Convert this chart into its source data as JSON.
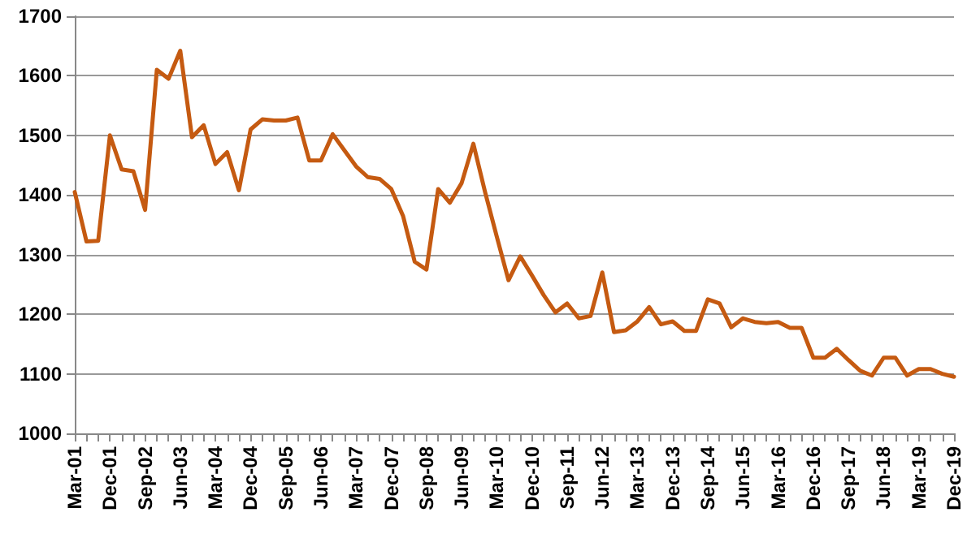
{
  "chart_data": {
    "type": "line",
    "categories": [
      "Mar-01",
      null,
      null,
      "Dec-01",
      null,
      null,
      "Sep-02",
      null,
      null,
      "Jun-03",
      null,
      null,
      "Mar-04",
      null,
      null,
      "Dec-04",
      null,
      null,
      "Sep-05",
      null,
      null,
      "Jun-06",
      null,
      null,
      "Mar-07",
      null,
      null,
      "Dec-07",
      null,
      null,
      "Sep-08",
      null,
      null,
      "Jun-09",
      null,
      null,
      "Mar-10",
      null,
      null,
      "Dec-10",
      null,
      null,
      "Sep-11",
      null,
      null,
      "Jun-12",
      null,
      null,
      "Mar-13",
      null,
      null,
      "Dec-13",
      null,
      null,
      "Sep-14",
      null,
      null,
      "Jun-15",
      null,
      null,
      "Mar-16",
      null,
      null,
      "Dec-16",
      null,
      null,
      "Sep-17",
      null,
      null,
      "Jun-18",
      null,
      null,
      "Mar-19",
      null,
      null,
      "Dec-19"
    ],
    "series": [
      {
        "color": "#c55a11",
        "values": [
          1405,
          1322,
          1323,
          1500,
          1443,
          1440,
          1375,
          1610,
          1595,
          1642,
          1497,
          1517,
          1452,
          1472,
          1408,
          1510,
          1527,
          1525,
          1525,
          1530,
          1458,
          1458,
          1502,
          1475,
          1448,
          1430,
          1427,
          1410,
          1365,
          1288,
          1275,
          1410,
          1387,
          1420,
          1486,
          1405,
          1330,
          1257,
          1297,
          1265,
          1232,
          1203,
          1218,
          1193,
          1197,
          1270,
          1170,
          1173,
          1188,
          1212,
          1183,
          1188,
          1172,
          1172,
          1225,
          1218,
          1178,
          1193,
          1187,
          1185,
          1187,
          1177,
          1177,
          1127,
          1127,
          1142,
          1123,
          1105,
          1097,
          1127,
          1127,
          1097,
          1108,
          1108,
          1100,
          1095
        ]
      }
    ],
    "ylim": [
      1000,
      1700
    ],
    "yticks": [
      1000,
      1100,
      1200,
      1300,
      1400,
      1500,
      1600,
      1700
    ],
    "grid": "y",
    "marker": "none",
    "line_style": "solid"
  }
}
